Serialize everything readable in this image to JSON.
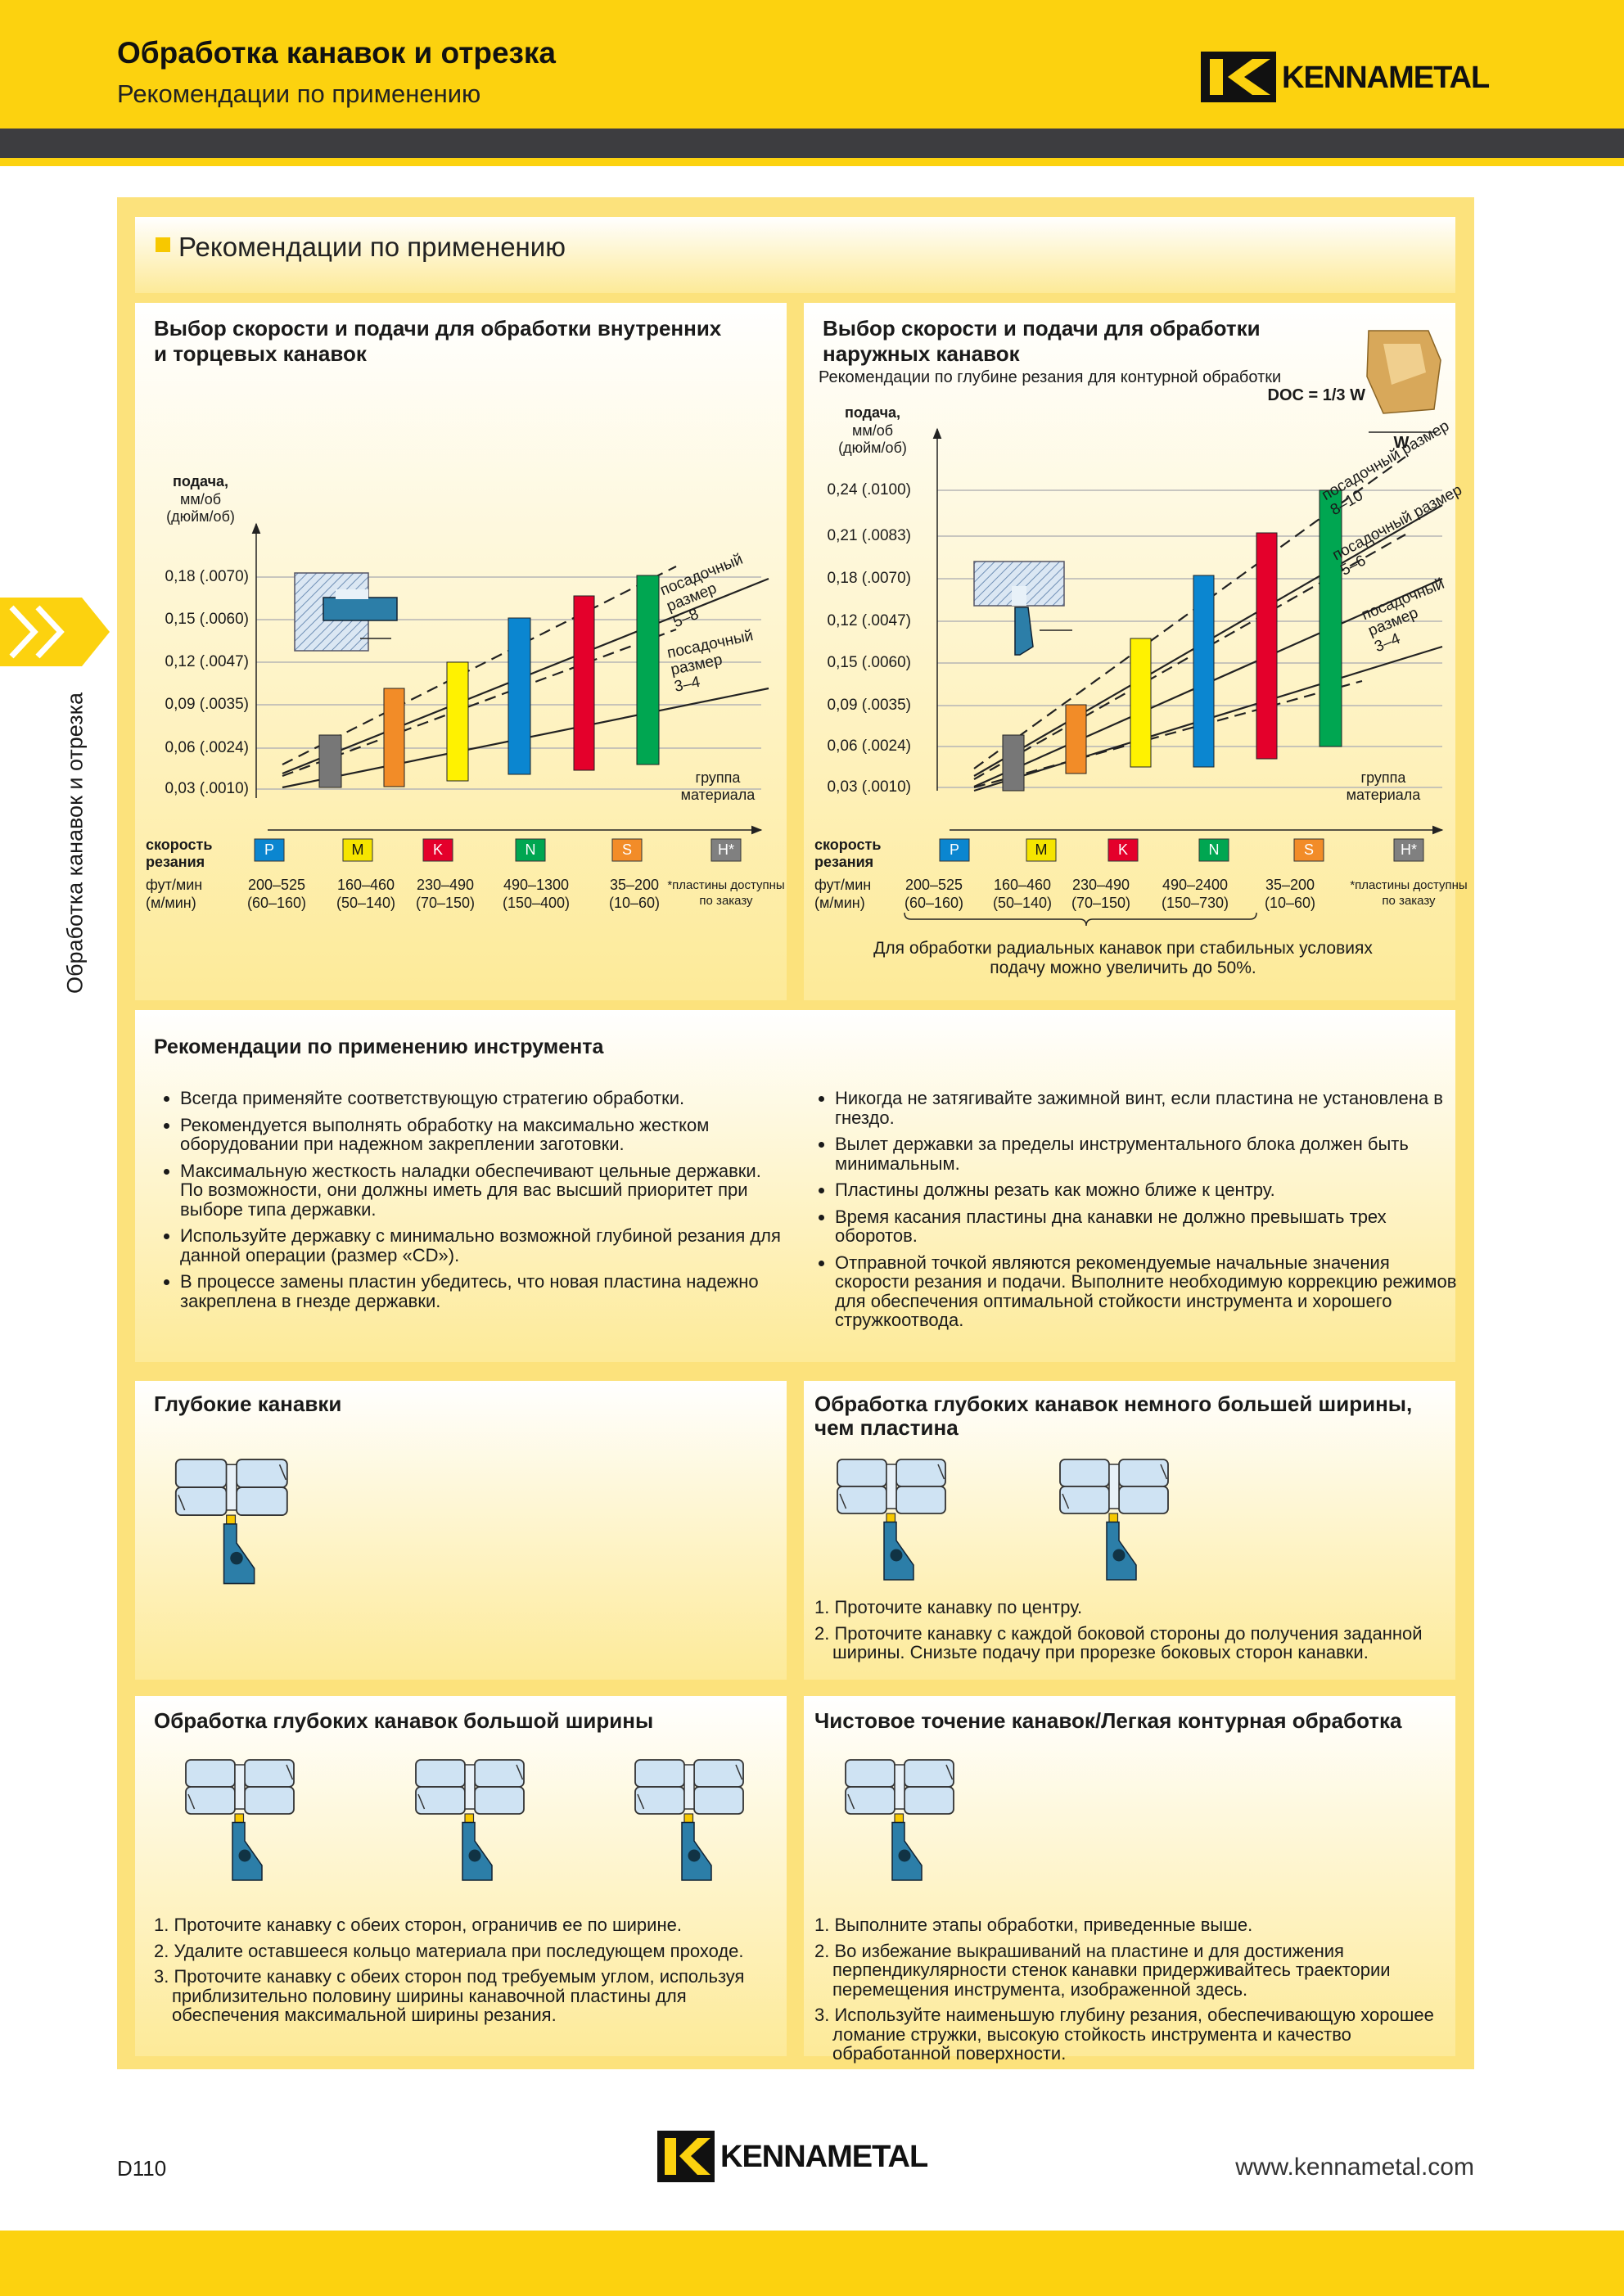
{
  "header": {
    "title": "Обработка канавок и отрезка",
    "subtitle": "Рекомендации по применению",
    "logo": "KENNAMETAL"
  },
  "side_tab": "Обработка канавок и отрезка",
  "section_title": "Рекомендации по применению",
  "chart_left": {
    "title": "Выбор скорости и подачи для обработки внутренних\nи торцевых канавок",
    "y_label_bold": "подача,",
    "y_label": "мм/об\n(дюйм/об)",
    "y_ticks": [
      "0,18 (.0070)",
      "0,15 (.0060)",
      "0,12 (.0047)",
      "0,09 (.0035)",
      "0,06 (.0024)",
      "0,03 (.0010)"
    ],
    "curve_labels": [
      "посадочный\nразмер\n5–8",
      "посадочный\nразмер\n3–4"
    ],
    "x_label": "группа\nматериала",
    "materials": [
      "P",
      "M",
      "K",
      "N",
      "S",
      "H*"
    ],
    "speed_label": "скорость\nрезания",
    "speed_units": "фут/мин\n(м/мин)",
    "speeds": [
      "200–525\n(60–160)",
      "160–460\n(50–140)",
      "230–490\n(70–150)",
      "490–1300\n(150–400)",
      "35–200\n(10–60)"
    ],
    "note": "*пластины доступны\nпо заказу"
  },
  "chart_right": {
    "title": "Выбор скорости и подачи для обработки\nнаружных канавок",
    "subtitle": "Рекомендации по глубине резания для контурной обработки",
    "doc": "DOC = 1/3 W",
    "w": "W",
    "y_label_bold": "подача,",
    "y_label": "мм/об\n(дюйм/об)",
    "y_ticks": [
      "0,24 (.0100)",
      "0,21 (.0083)",
      "0,18 (.0070)",
      "0,12 (.0047)",
      "0,15 (.0060)",
      "0,09 (.0035)",
      "0,06 (.0024)",
      "0,03 (.0010)"
    ],
    "curve_labels": [
      "посадочный размер\n8–10",
      "посадочный размер\n5–6",
      "посадочный\nразмер\n3–4"
    ],
    "x_label": "группа\nматериала",
    "materials": [
      "P",
      "M",
      "K",
      "N",
      "S",
      "H*"
    ],
    "speed_label": "скорость\nрезания",
    "speed_units": "фут/мин\n(м/мин)",
    "speeds": [
      "200–525\n(60–160)",
      "160–460\n(50–140)",
      "230–490\n(70–150)",
      "490–2400\n(150–730)",
      "35–200\n(10–60)"
    ],
    "note": "*пластины доступны\nпо заказу",
    "footnote": "Для обработки радиальных канавок при стабильных условиях\nподачу можно увеличить до 50%."
  },
  "tool_recs": {
    "title": "Рекомендации по применению инструмента",
    "left": [
      "Всегда применяйте соответствующую стратегию обработки.",
      "Рекомендуется выполнять обработку на максимально жестком оборудовании при надежном закреплении заготовки.",
      "Максимальную жесткость наладки обеспечивают цельные державки.\nПо возможности, они должны иметь для вас высший приоритет при выборе типа державки.",
      "Используйте державку с минимально возможной глубиной резания для данной операции (размер «CD»).",
      "В процессе замены пластин убедитесь, что новая пластина надежно закреплена в гнезде державки."
    ],
    "right": [
      "Никогда не затягивайте зажимной винт, если пластина не установлена в гнездо.",
      "Вылет державки за пределы инструментального блока должен быть минимальным.",
      "Пластины должны резать как можно ближе к центру.",
      "Время касания пластины дна канавки не должно превышать трех оборотов.",
      "Отправной точкой являются рекомендуемые начальные значения скорости резания и подачи. Выполните необходимую коррекцию режимов для обеспечения оптимальной стойкости инструмента и хорошего стружкоотвода."
    ]
  },
  "deep_grooves": {
    "title": "Глубокие канавки"
  },
  "wider_grooves": {
    "title": "Обработка глубоких канавок немного большей ширины,\nчем пластина",
    "steps": [
      "1. Проточите канавку по центру.",
      "2. Проточите канавку с каждой боковой стороны до получения заданной ширины. Снизьте подачу при прорезке боковых сторон канавки."
    ]
  },
  "wide_grooves": {
    "title": "Обработка глубоких канавок большой ширины",
    "steps": [
      "1. Проточите канавку с обеих сторон, ограничив ее по ширине.",
      "2. Удалите оставшееся кольцо материала при последующем проходе.",
      "3. Проточите канавку с обеих сторон под требуемым углом, используя приблизительно половину ширины канавочной пластины для обеспечения максимальной ширины резания."
    ]
  },
  "finishing": {
    "title": "Чистовое точение канавок/Легкая контурная обработка",
    "steps": [
      "1. Выполните этапы обработки, приведенные выше.",
      "2. Во избежание выкрашиваний на пластине и для достижения перпендикулярности стенок канавки придерживайтесь траектории перемещения инструмента, изображенной здесь.",
      "3. Используйте наименьшую глубину резания, обеспечивающую хорошее ломание стружки, высокую стойкость инструмента и качество обработанной поверхности."
    ]
  },
  "footer": {
    "page": "D110",
    "logo": "KENNAMETAL",
    "url": "www.kennametal.com"
  }
}
